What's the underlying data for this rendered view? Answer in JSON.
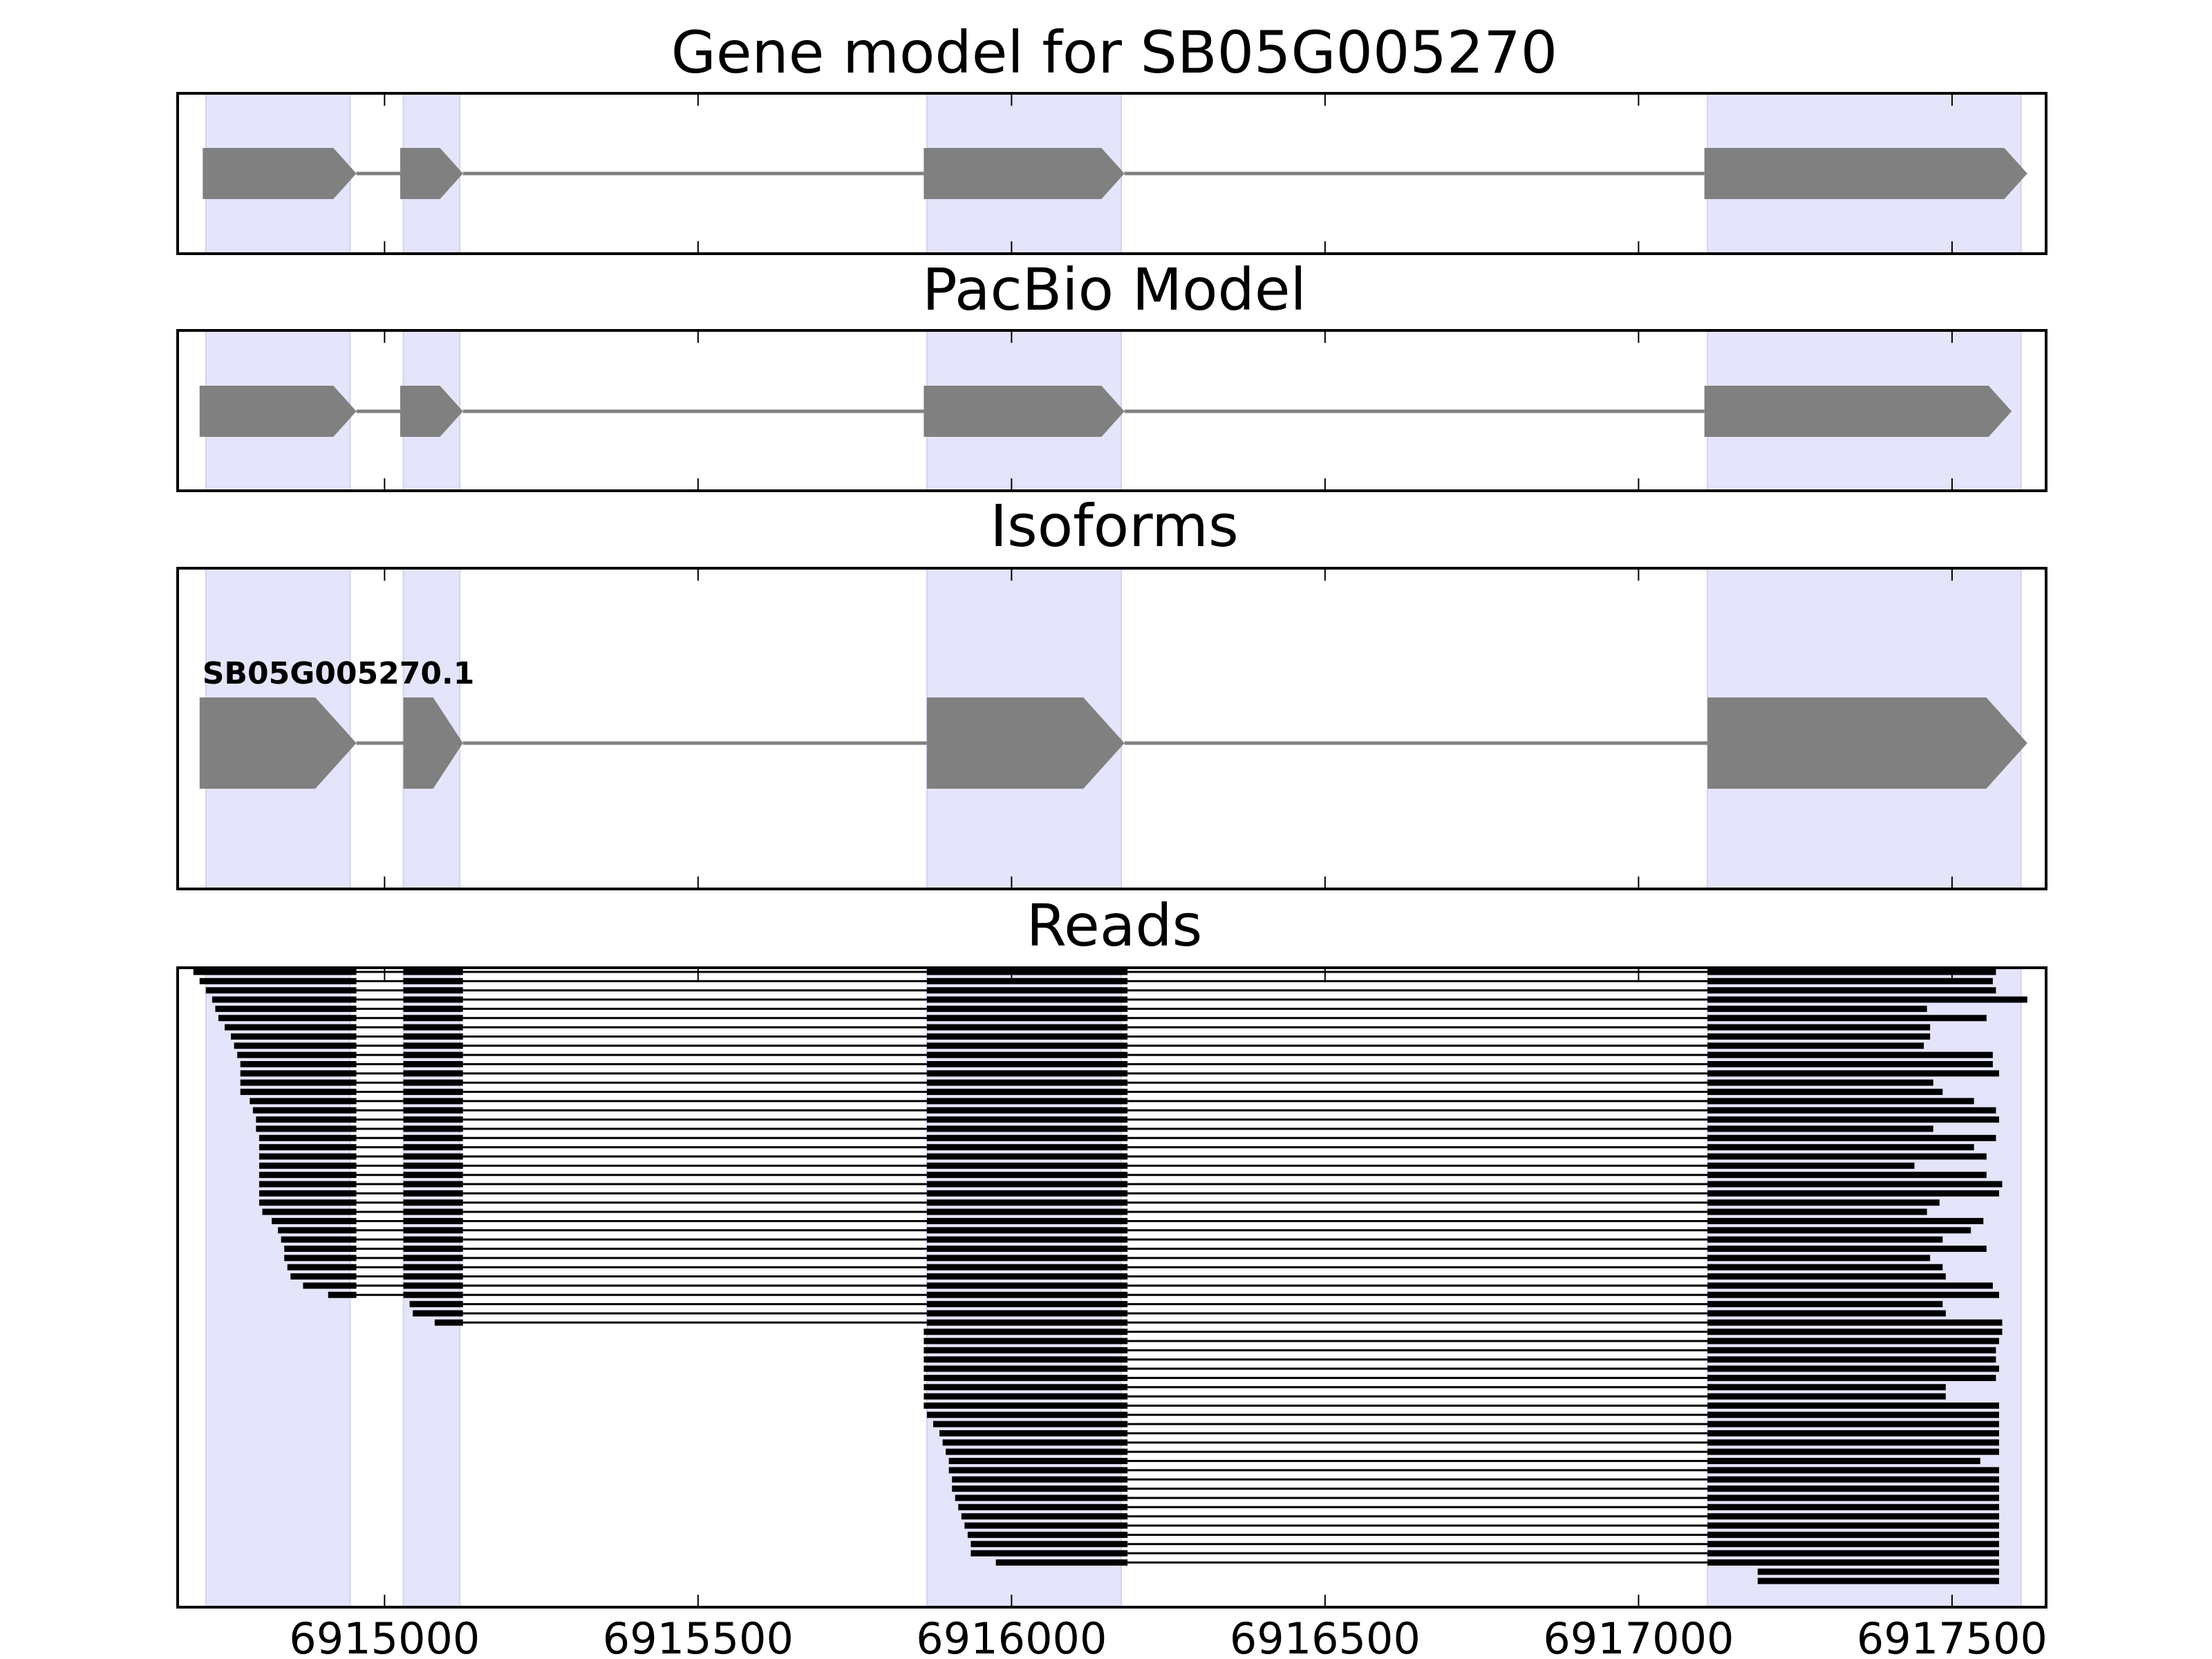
{
  "chart_data": {
    "type": "gene-track",
    "title": "Gene model for SB05G005270",
    "xlim": [
      6914670,
      6917650
    ],
    "xticks": [
      6915000,
      6915500,
      6916000,
      6916500,
      6917000,
      6917500
    ],
    "xtick_labels": [
      "6915000",
      "6915500",
      "6916000",
      "6916500",
      "6917000",
      "6917500"
    ],
    "strand": "+",
    "colors": {
      "exon": "#808080",
      "intron": "#808080",
      "highlight": "#e4e4fb",
      "read": "#000000"
    },
    "highlight_regions": [
      [
        6914715,
        6914945
      ],
      [
        6915030,
        6915120
      ],
      [
        6915865,
        6916175
      ],
      [
        6917110,
        6917610
      ]
    ],
    "panels": [
      {
        "title": "Gene model for SB05G005270",
        "models": [
          {
            "label": "",
            "exons": [
              [
                6914710,
                6914955
              ],
              [
                6915025,
                6915125
              ],
              [
                6915860,
                6916180
              ],
              [
                6917105,
                6917620
              ]
            ]
          }
        ]
      },
      {
        "title": "PacBio Model",
        "models": [
          {
            "label": "",
            "exons": [
              [
                6914705,
                6914955
              ],
              [
                6915025,
                6915125
              ],
              [
                6915860,
                6916180
              ],
              [
                6917105,
                6917595
              ]
            ]
          }
        ]
      },
      {
        "title": "Isoforms",
        "models": [
          {
            "label": "SB05G005270.1",
            "exons": [
              [
                6914705,
                6914955
              ],
              [
                6915030,
                6915125
              ],
              [
                6915865,
                6916180
              ],
              [
                6917110,
                6917620
              ]
            ]
          }
        ]
      }
    ],
    "reads": {
      "title": "Reads",
      "exon_core": {
        "exon1_end": 6914955,
        "exon2": [
          6915030,
          6915125
        ],
        "exon3": [
          6915865,
          6916185
        ],
        "exon4_start": 6917110
      },
      "type_a_starts": [
        6914695,
        6914705,
        6914715,
        6914725,
        6914730,
        6914735,
        6914745,
        6914755,
        6914760,
        6914765,
        6914770,
        6914770,
        6914770,
        6914770,
        6914785,
        6914790,
        6914795,
        6914795,
        6914800,
        6914800,
        6914800,
        6914800,
        6914800,
        6914800,
        6914800,
        6914800,
        6914805,
        6914820,
        6914830,
        6914835,
        6914840,
        6914840,
        6914845,
        6914850,
        6914870,
        6914910
      ],
      "type_b_starts": [
        6915040,
        6915045,
        6915080
      ],
      "type_c_starts": [
        6915860,
        6915860,
        6915860,
        6915860,
        6915860,
        6915860,
        6915860,
        6915860,
        6915860,
        6915865,
        6915875,
        6915885,
        6915890,
        6915895,
        6915900,
        6915900,
        6915905,
        6915905,
        6915910,
        6915915,
        6915920,
        6915925,
        6915930,
        6915935,
        6915935,
        6915975
      ],
      "ends": [
        6917570,
        6917565,
        6917570,
        6917620,
        6917460,
        6917555,
        6917465,
        6917465,
        6917455,
        6917565,
        6917565,
        6917575,
        6917470,
        6917485,
        6917535,
        6917570,
        6917575,
        6917470,
        6917570,
        6917535,
        6917555,
        6917440,
        6917555,
        6917580,
        6917575,
        6917480,
        6917460,
        6917550,
        6917530,
        6917485,
        6917555,
        6917465,
        6917485,
        6917490,
        6917565,
        6917575,
        6917485,
        6917490,
        6917580,
        6917580,
        6917575,
        6917570,
        6917570,
        6917575,
        6917570,
        6917490,
        6917490,
        6917575,
        6917575,
        6917575,
        6917575,
        6917575,
        6917575,
        6917545,
        6917575,
        6917575,
        6917575,
        6917575,
        6917575,
        6917575,
        6917575,
        6917575,
        6917575,
        6917575,
        6917575
      ],
      "late_starts": [
        6917190,
        6917190
      ]
    }
  }
}
